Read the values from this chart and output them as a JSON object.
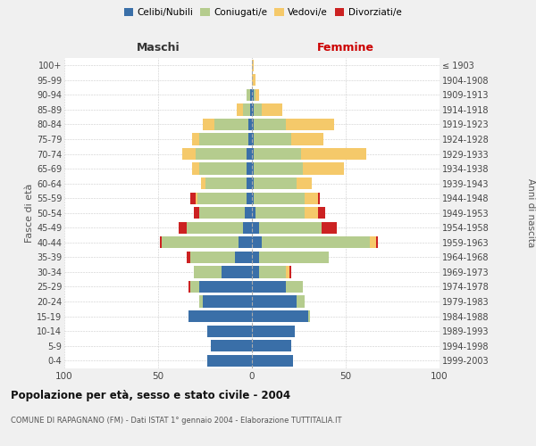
{
  "age_groups": [
    "0-4",
    "5-9",
    "10-14",
    "15-19",
    "20-24",
    "25-29",
    "30-34",
    "35-39",
    "40-44",
    "45-49",
    "50-54",
    "55-59",
    "60-64",
    "65-69",
    "70-74",
    "75-79",
    "80-84",
    "85-89",
    "90-94",
    "95-99",
    "100+"
  ],
  "birth_years": [
    "1999-2003",
    "1994-1998",
    "1989-1993",
    "1984-1988",
    "1979-1983",
    "1974-1978",
    "1969-1973",
    "1964-1968",
    "1959-1963",
    "1954-1958",
    "1949-1953",
    "1944-1948",
    "1939-1943",
    "1934-1938",
    "1929-1933",
    "1924-1928",
    "1919-1923",
    "1914-1918",
    "1909-1913",
    "1904-1908",
    "≤ 1903"
  ],
  "colors": {
    "celibe": "#3a6fa8",
    "coniugato": "#b5cc8e",
    "vedovo": "#f5c96a",
    "divorziato": "#cc2222"
  },
  "maschi": {
    "celibe": [
      24,
      22,
      24,
      34,
      26,
      28,
      16,
      9,
      7,
      5,
      4,
      3,
      3,
      3,
      3,
      2,
      2,
      1,
      1,
      0,
      0
    ],
    "coniugato": [
      0,
      0,
      0,
      0,
      2,
      5,
      15,
      24,
      41,
      30,
      24,
      26,
      22,
      25,
      27,
      26,
      18,
      4,
      2,
      0,
      0
    ],
    "vedovo": [
      0,
      0,
      0,
      0,
      0,
      0,
      0,
      0,
      0,
      0,
      0,
      1,
      2,
      4,
      7,
      4,
      6,
      3,
      0,
      0,
      0
    ],
    "divorziato": [
      0,
      0,
      0,
      0,
      0,
      1,
      0,
      2,
      1,
      4,
      3,
      3,
      0,
      0,
      0,
      0,
      0,
      0,
      0,
      0,
      0
    ]
  },
  "femmine": {
    "nubile": [
      22,
      21,
      23,
      30,
      24,
      18,
      4,
      4,
      5,
      4,
      2,
      1,
      1,
      1,
      1,
      1,
      1,
      1,
      1,
      0,
      0
    ],
    "coniugata": [
      0,
      0,
      0,
      1,
      4,
      9,
      14,
      37,
      58,
      33,
      26,
      27,
      23,
      26,
      25,
      20,
      17,
      4,
      1,
      0,
      0
    ],
    "vedova": [
      0,
      0,
      0,
      0,
      0,
      0,
      2,
      0,
      3,
      0,
      7,
      7,
      8,
      22,
      35,
      17,
      26,
      11,
      2,
      2,
      1
    ],
    "divorziata": [
      0,
      0,
      0,
      0,
      0,
      0,
      1,
      0,
      1,
      8,
      4,
      1,
      0,
      0,
      0,
      0,
      0,
      0,
      0,
      0,
      0
    ]
  },
  "xlim": 100,
  "title": "Popolazione per età, sesso e stato civile - 2004",
  "subtitle": "COMUNE DI RAPAGNANO (FM) - Dati ISTAT 1° gennaio 2004 - Elaborazione TUTTITALIA.IT",
  "ylabel_left": "Fasce di età",
  "ylabel_right": "Anni di nascita",
  "xlabel_left": "Maschi",
  "xlabel_right": "Femmine",
  "background_color": "#f0f0f0",
  "plot_bg": "#ffffff"
}
